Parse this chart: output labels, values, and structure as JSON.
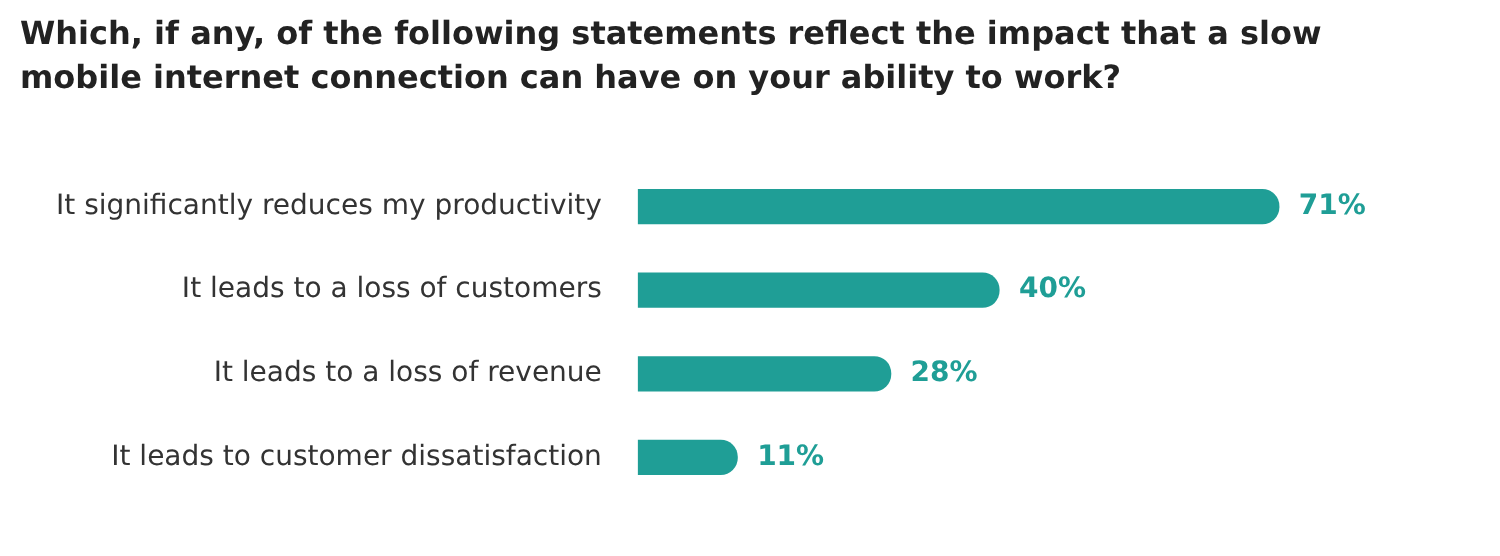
{
  "chart_data": {
    "type": "bar",
    "orientation": "horizontal",
    "title": "Which, if any, of the following statements reflect the impact that a slow mobile internet connection can have on your ability to work?",
    "categories": [
      "It significantly reduces my productivity",
      "It leads to a loss of customers",
      "It leads to a loss of revenue",
      "It leads to customer dissatisfaction"
    ],
    "values": [
      71,
      40,
      28,
      11
    ],
    "value_labels": [
      "71%",
      "40%",
      "28%",
      "11%"
    ],
    "color": "#1f9e96",
    "grid": false,
    "legend": false
  }
}
